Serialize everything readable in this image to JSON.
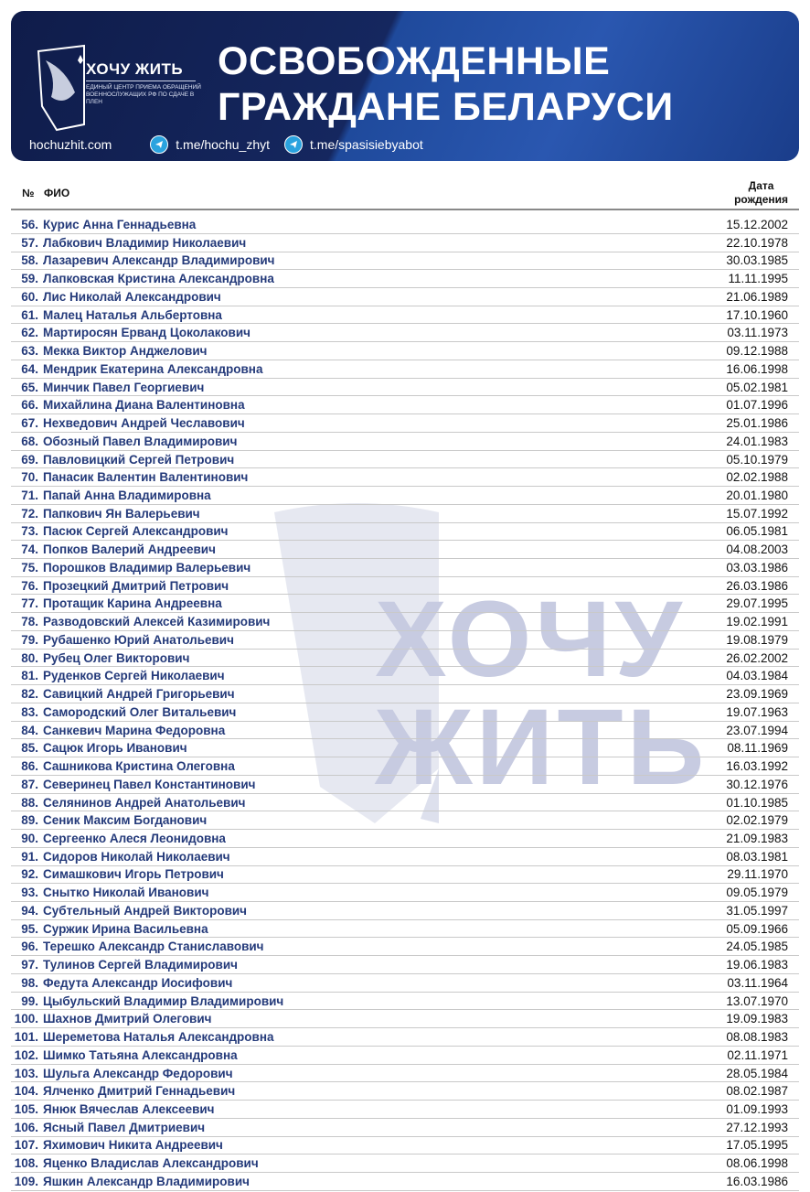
{
  "header": {
    "logo_title": "ХОЧУ ЖИТЬ",
    "logo_subtitle": "ЕДИНЫЙ ЦЕНТР ПРИЕМА ОБРАЩЕНИЙ ВОЕННОСЛУЖАЩИХ РФ ПО СДАЧЕ В ПЛЕН",
    "title_line1": "ОСВОБОЖДЕННЫЕ",
    "title_line2": "ГРАЖДАНЕ БЕЛАРУСИ",
    "website": "hochuzhit.com",
    "telegram1": "t.me/hochu_zhyt",
    "telegram2": "t.me/spasisiebyabot",
    "telegram_icon": "telegram-icon"
  },
  "table": {
    "col_num": "№",
    "col_name": "ФИО",
    "col_date_1": "Дата",
    "col_date_2": "рождения",
    "rows": [
      [
        "56.",
        "Курис Анна Геннадьевна",
        "15.12.2002"
      ],
      [
        "57.",
        "Лабкович Владимир Николаевич",
        "22.10.1978"
      ],
      [
        "58.",
        "Лазаревич Александр Владимирович",
        "30.03.1985"
      ],
      [
        "59.",
        "Лапковская Кристина Александровна",
        "11.11.1995"
      ],
      [
        "60.",
        "Лис Николай Александрович",
        "21.06.1989"
      ],
      [
        "61.",
        "Малец Наталья Альбертовна",
        "17.10.1960"
      ],
      [
        "62.",
        "Мартиросян Ерванд Цоколакович",
        "03.11.1973"
      ],
      [
        "63.",
        "Мекка Виктор Анджелович",
        "09.12.1988"
      ],
      [
        "64.",
        "Мендрик Екатерина Александровна",
        "16.06.1998"
      ],
      [
        "65.",
        "Минчик Павел Георгиевич",
        "05.02.1981"
      ],
      [
        "66.",
        "Михайлина Диана Валентиновна",
        "01.07.1996"
      ],
      [
        "67.",
        "Нехведович Андрей Чеславович",
        "25.01.1986"
      ],
      [
        "68.",
        "Обозный Павел Владимирович",
        "24.01.1983"
      ],
      [
        "69.",
        "Павловицкий Сергей Петрович",
        "05.10.1979"
      ],
      [
        "70.",
        "Панасик Валентин Валентинович",
        "02.02.1988"
      ],
      [
        "71.",
        "Папай Анна Владимировна",
        "20.01.1980"
      ],
      [
        "72.",
        "Папкович Ян Валерьевич",
        "15.07.1992"
      ],
      [
        "73.",
        "Пасюк Сергей Александрович",
        "06.05.1981"
      ],
      [
        "74.",
        "Попков Валерий Андреевич",
        "04.08.2003"
      ],
      [
        "75.",
        "Порошков Владимир Валерьевич",
        "03.03.1986"
      ],
      [
        "76.",
        "Прозецкий Дмитрий Петрович",
        "26.03.1986"
      ],
      [
        "77.",
        "Протащик Карина Андреевна",
        "29.07.1995"
      ],
      [
        "78.",
        "Разводовский Алексей Казимирович",
        "19.02.1991"
      ],
      [
        "79.",
        "Рубашенко Юрий Анатольевич",
        "19.08.1979"
      ],
      [
        "80.",
        "Рубец Олег Викторович",
        "26.02.2002"
      ],
      [
        "81.",
        "Руденков Сергей Николаевич",
        "04.03.1984"
      ],
      [
        "82.",
        "Савицкий Андрей Григорьевич",
        "23.09.1969"
      ],
      [
        "83.",
        "Самородский Олег Витальевич",
        "19.07.1963"
      ],
      [
        "84.",
        "Санкевич Марина Федоровна",
        "23.07.1994"
      ],
      [
        "85.",
        "Сацюк Игорь Иванович",
        "08.11.1969"
      ],
      [
        "86.",
        "Сашникова Кристина Олеговна",
        "16.03.1992"
      ],
      [
        "87.",
        "Северинец Павел Константинович",
        "30.12.1976"
      ],
      [
        "88.",
        "Селянинов Андрей Анатольевич",
        "01.10.1985"
      ],
      [
        "89.",
        "Сеник Максим Богданович",
        "02.02.1979"
      ],
      [
        "90.",
        "Сергеенко Алеся Леонидовна",
        "21.09.1983"
      ],
      [
        "91.",
        "Сидоров Николай Николаевич",
        "08.03.1981"
      ],
      [
        "92.",
        "Симашкович Игорь Петрович",
        "29.11.1970"
      ],
      [
        "93.",
        "Снытко Николай Иванович",
        "09.05.1979"
      ],
      [
        "94.",
        "Субтельный Андрей Викторович",
        "31.05.1997"
      ],
      [
        "95.",
        "Суржик Ирина Васильевна",
        "05.09.1966"
      ],
      [
        "96.",
        "Терешко Александр Станиславович",
        "24.05.1985"
      ],
      [
        "97.",
        "Тулинов Сергей Владимирович",
        "19.06.1983"
      ],
      [
        "98.",
        "Федута Александр Иосифович",
        "03.11.1964"
      ],
      [
        "99.",
        "Цыбульский Владимир Владимирович",
        "13.07.1970"
      ],
      [
        "100.",
        "Шахнов Дмитрий Олегович",
        "19.09.1983"
      ],
      [
        "101.",
        "Шереметова Наталья Александровна",
        "08.08.1983"
      ],
      [
        "102.",
        "Шимко Татьяна Александровна",
        "02.11.1971"
      ],
      [
        "103.",
        "Шульга Александр Федорович",
        "28.05.1984"
      ],
      [
        "104.",
        "Ялченко Дмитрий Геннадьевич",
        "08.02.1987"
      ],
      [
        "105.",
        "Янюк Вячеслав Алексеевич",
        "01.09.1993"
      ],
      [
        "106.",
        "Ясный Павел Дмитриевич",
        "27.12.1993"
      ],
      [
        "107.",
        "Яхимович Никита Андреевич",
        "17.05.1995"
      ],
      [
        "108.",
        "Яценко Владислав Александрович",
        "08.06.1998"
      ],
      [
        "109.",
        "Яшкин Александр Владимирович",
        "16.03.1986"
      ]
    ]
  },
  "watermark": {
    "line1": "ХОЧУ",
    "line2": "ЖИТЬ"
  },
  "colors": {
    "banner": "#15275f",
    "name_text": "#243a7a",
    "watermark": "#c7cbe1"
  }
}
